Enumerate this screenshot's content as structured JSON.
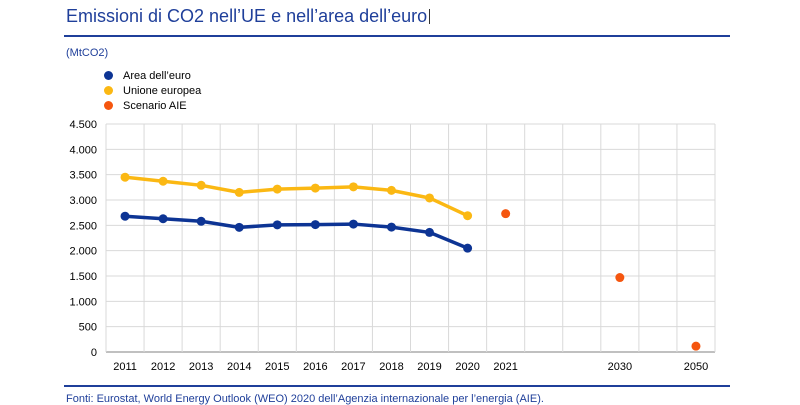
{
  "header": {
    "title": "Emissioni di CO2 nell’UE e nell’area dell’euro",
    "unit": "(MtCO2)"
  },
  "footer": {
    "source": "Fonti: Eurostat, World Energy Outlook (WEO) 2020 dell’Agenzia internazionale per l’energia (AIE)."
  },
  "colors": {
    "euro_area": "#0d3494",
    "eu": "#fbb813",
    "iea": "#f5560f",
    "brand": "#1f3f9a"
  },
  "chart_data": {
    "type": "line",
    "title": "",
    "xlabel": "",
    "ylabel": "",
    "x_categories": [
      "2011",
      "2012",
      "2013",
      "2014",
      "2015",
      "2016",
      "2017",
      "2018",
      "2019",
      "2020",
      "2021",
      "",
      "",
      "2030",
      "",
      "2050"
    ],
    "ylim": [
      0,
      4500
    ],
    "y_ticks": [
      {
        "value": 0,
        "label": "0"
      },
      {
        "value": 500,
        "label": "500"
      },
      {
        "value": 1000,
        "label": "1.000"
      },
      {
        "value": 1500,
        "label": "1.500"
      },
      {
        "value": 2000,
        "label": "2.000"
      },
      {
        "value": 2500,
        "label": "2.500"
      },
      {
        "value": 3000,
        "label": "3.000"
      },
      {
        "value": 3500,
        "label": "3.500"
      },
      {
        "value": 4000,
        "label": "4.000"
      },
      {
        "value": 4500,
        "label": "4.500"
      }
    ],
    "grid": true,
    "legend_position": "top-left",
    "series": [
      {
        "name": "Area dell’euro",
        "kind": "line",
        "color": "#0d3494",
        "x": [
          "2011",
          "2012",
          "2013",
          "2014",
          "2015",
          "2016",
          "2017",
          "2018",
          "2019",
          "2020"
        ],
        "values": [
          2680,
          2630,
          2580,
          2460,
          2510,
          2515,
          2525,
          2465,
          2360,
          2050
        ]
      },
      {
        "name": "Unione europea",
        "kind": "line",
        "color": "#fbb813",
        "x": [
          "2011",
          "2012",
          "2013",
          "2014",
          "2015",
          "2016",
          "2017",
          "2018",
          "2019",
          "2020"
        ],
        "values": [
          3450,
          3370,
          3290,
          3150,
          3215,
          3235,
          3260,
          3190,
          3040,
          2690
        ]
      },
      {
        "name": "Scenario AIE",
        "kind": "scatter",
        "color": "#f5560f",
        "x": [
          "2021",
          "2030",
          "2050"
        ],
        "values": [
          2730,
          1470,
          115
        ]
      }
    ]
  }
}
